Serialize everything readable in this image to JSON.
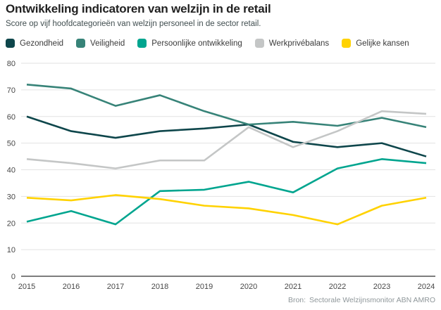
{
  "header": {
    "title": "Ontwikkeling indicatoren van welzijn in de retail",
    "subtitle": "Score op vijf hoofdcategorieën van welzijn personeel in de sector retail."
  },
  "footer": {
    "label": "Bron:",
    "source": "Sectorale Welzijnsmonitor ABN AMRO"
  },
  "colors": {
    "background": "#ffffff",
    "title_text": "#212121",
    "subtitle_text": "#414e50",
    "legend_text": "#3a3a3a",
    "grid": "#e2e2e2",
    "axis": "#7d7d7d",
    "tick_text": "#474747",
    "source_text": "#8f979a"
  },
  "chart_data": {
    "type": "line",
    "title": "Ontwikkeling indicatoren van welzijn in de retail",
    "subtitle": "Score op vijf hoofdcategorieën van welzijn personeel in de sector retail.",
    "xlabel": "",
    "ylabel": "",
    "x": [
      2015,
      2016,
      2017,
      2018,
      2019,
      2020,
      2021,
      2022,
      2023,
      2024
    ],
    "series": [
      {
        "name": "Gezondheid",
        "color": "#0e464b",
        "values": [
          60,
          54.5,
          52,
          54.5,
          55.5,
          57,
          50.5,
          48.5,
          50,
          45
        ]
      },
      {
        "name": "Veiligheid",
        "color": "#378378",
        "values": [
          72,
          70.5,
          64,
          68,
          62,
          57,
          58,
          56.5,
          59.5,
          56
        ]
      },
      {
        "name": "Persoonlijke ontwikkeling",
        "color": "#00a58f",
        "values": [
          20.5,
          24.5,
          19.5,
          32,
          32.5,
          35.5,
          31.5,
          40.5,
          44,
          42.5
        ]
      },
      {
        "name": "Werkprivébalans",
        "color": "#c4c6c6",
        "values": [
          44,
          42.5,
          40.5,
          43.5,
          43.5,
          56,
          48.5,
          54.5,
          62,
          61
        ]
      },
      {
        "name": "Gelijke kansen",
        "color": "#ffd200",
        "values": [
          29.5,
          28.5,
          30.5,
          29,
          26.5,
          25.5,
          23,
          19.5,
          26.5,
          29.5
        ]
      }
    ],
    "ylim": [
      0,
      80
    ],
    "ytick_step": 10,
    "grid": "horizontal",
    "legend_position": "top"
  }
}
